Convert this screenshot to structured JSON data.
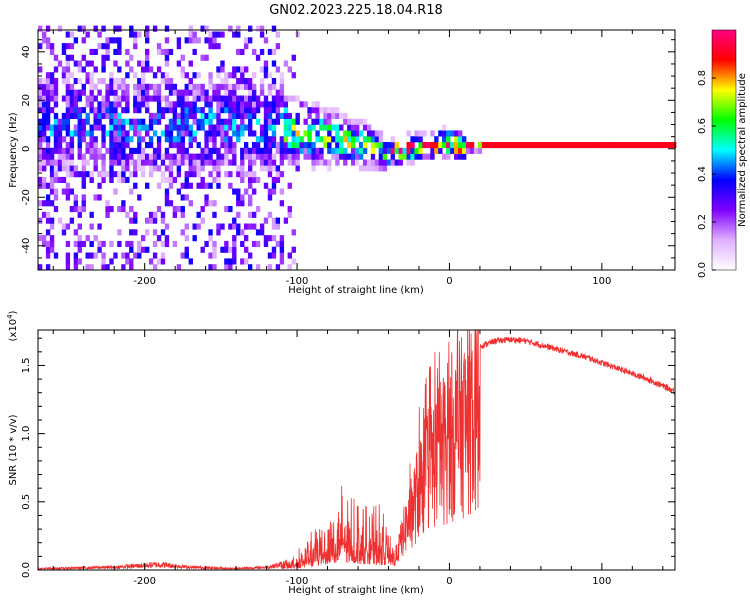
{
  "figure": {
    "title": "GN02.2023.225.18.04.R18"
  },
  "chart_data": [
    {
      "type": "heatmap",
      "xlabel": "Height of straight line (km)",
      "ylabel": "Frequency (Hz)",
      "xlim": [
        -270,
        148
      ],
      "ylim": [
        -50,
        49
      ],
      "x_ticks": [
        "-200",
        "-100",
        "0",
        "100"
      ],
      "y_ticks": [
        "-40",
        "-20",
        "0",
        "20",
        "40"
      ],
      "grid": false,
      "colorbar": {
        "label": "Normalized spectral amplitude",
        "range": [
          0.0,
          1.0
        ],
        "ticks": [
          "0.0",
          "0.2",
          "0.4",
          "0.6",
          "0.8"
        ],
        "colors": [
          "#ffffff",
          "#e0b0ff",
          "#8000ff",
          "#0000ff",
          "#00ffff",
          "#00ff00",
          "#ffff00",
          "#ff0000",
          "#ff0080"
        ]
      },
      "ridge": {
        "description_points_x": [
          -200,
          -160,
          -130,
          -110,
          -90,
          -70,
          -55,
          -45,
          -35,
          -20,
          -5,
          0,
          10,
          30,
          148
        ],
        "description_points_y": [
          8,
          9,
          8,
          7,
          5,
          2,
          0,
          -3,
          -2,
          0,
          1,
          1,
          0,
          0,
          0
        ]
      }
    },
    {
      "type": "line",
      "xlabel": "Height of straight line (km)",
      "ylabel": "SNR (10 * v/v)",
      "y_multiplier": "(x10",
      "y_multiplier_exp": "4",
      "y_multiplier_close": ")",
      "xlim": [
        -270,
        148
      ],
      "ylim": [
        0,
        17600
      ],
      "x_ticks": [
        "-200",
        "-100",
        "0",
        "100"
      ],
      "y_ticks": [
        "0.0",
        "0.5",
        "1.0",
        "1.5"
      ],
      "grid": false,
      "series_color": "#ee3030",
      "envelope": {
        "x": [
          -270,
          -220,
          -190,
          -170,
          -140,
          -120,
          -110,
          -100,
          -90,
          -80,
          -70,
          -60,
          -50,
          -40,
          -36,
          -30,
          -25,
          -20,
          -15,
          -10,
          -5,
          0,
          10,
          20,
          30,
          40,
          50,
          60,
          70,
          80,
          90,
          100,
          110,
          120,
          130,
          140,
          148
        ],
        "y": [
          100,
          200,
          400,
          200,
          100,
          200,
          400,
          800,
          1500,
          2800,
          3300,
          3000,
          2600,
          2200,
          900,
          4000,
          6000,
          8500,
          10500,
          11500,
          12500,
          13500,
          15300,
          16400,
          16800,
          16900,
          16800,
          16500,
          16200,
          15900,
          15600,
          15200,
          14800,
          14400,
          14000,
          13500,
          13100
        ]
      }
    }
  ]
}
